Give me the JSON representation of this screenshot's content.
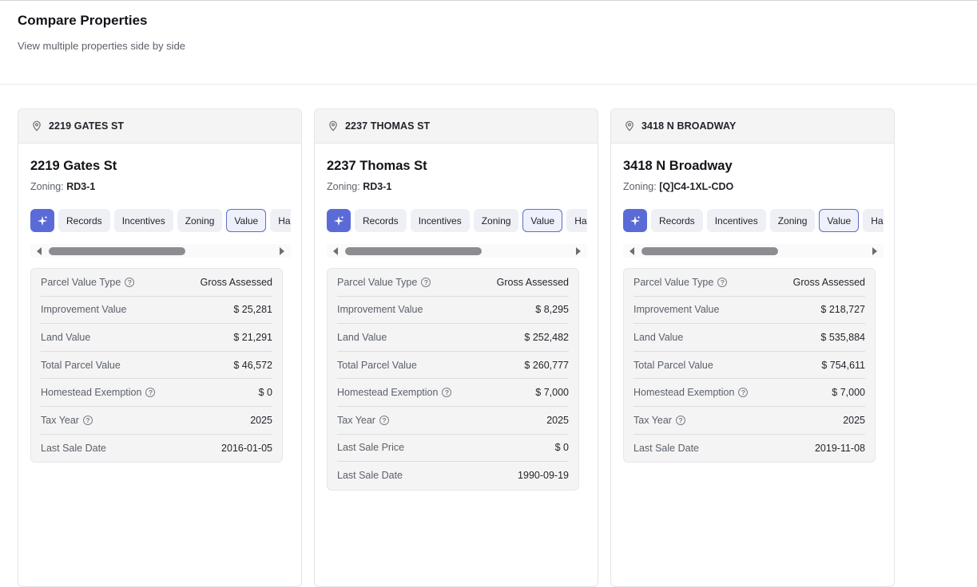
{
  "page": {
    "title": "Compare Properties",
    "subtitle": "View multiple properties side by side"
  },
  "colors": {
    "accent": "#5a6bd8",
    "active_tab_border": "#5b6dc7",
    "panel_bg": "#f4f4f5"
  },
  "tabs": [
    "Records",
    "Incentives",
    "Zoning",
    "Value",
    "Haza"
  ],
  "active_tab": "Value",
  "zoning_label": "Zoning:",
  "help_glyph": "?",
  "properties": [
    {
      "header": "2219 GATES ST",
      "name": "2219 Gates St",
      "zoning": "RD3-1",
      "tab_0": "Records",
      "tab_1": "Incentives",
      "tab_2": "Zoning",
      "tab_3": "Value",
      "tab_4": "Haza",
      "rows": [
        {
          "label": "Parcel Value Type",
          "value": "Gross Assessed",
          "help": true
        },
        {
          "label": "Improvement Value",
          "value": "$ 25,281",
          "help": false
        },
        {
          "label": "Land Value",
          "value": "$ 21,291",
          "help": false
        },
        {
          "label": "Total Parcel Value",
          "value": "$ 46,572",
          "help": false
        },
        {
          "label": "Homestead Exemption",
          "value": "$ 0",
          "help": true
        },
        {
          "label": "Tax Year",
          "value": "2025",
          "help": true
        },
        {
          "label": "Last Sale Date",
          "value": "2016-01-05",
          "help": false
        }
      ]
    },
    {
      "header": "2237 THOMAS ST",
      "name": "2237 Thomas St",
      "zoning": "RD3-1",
      "tab_0": "Records",
      "tab_1": "Incentives",
      "tab_2": "Zoning",
      "tab_3": "Value",
      "tab_4": "Haza",
      "rows": [
        {
          "label": "Parcel Value Type",
          "value": "Gross Assessed",
          "help": true
        },
        {
          "label": "Improvement Value",
          "value": "$ 8,295",
          "help": false
        },
        {
          "label": "Land Value",
          "value": "$ 252,482",
          "help": false
        },
        {
          "label": "Total Parcel Value",
          "value": "$ 260,777",
          "help": false
        },
        {
          "label": "Homestead Exemption",
          "value": "$ 7,000",
          "help": true
        },
        {
          "label": "Tax Year",
          "value": "2025",
          "help": true
        },
        {
          "label": "Last Sale Price",
          "value": "$ 0",
          "help": false
        },
        {
          "label": "Last Sale Date",
          "value": "1990-09-19",
          "help": false
        }
      ]
    },
    {
      "header": "3418 N BROADWAY",
      "name": "3418 N Broadway",
      "zoning": "[Q]C4-1XL-CDO",
      "tab_0": "Records",
      "tab_1": "Incentives",
      "tab_2": "Zoning",
      "tab_3": "Value",
      "tab_4": "Haza",
      "rows": [
        {
          "label": "Parcel Value Type",
          "value": "Gross Assessed",
          "help": true
        },
        {
          "label": "Improvement Value",
          "value": "$ 218,727",
          "help": false
        },
        {
          "label": "Land Value",
          "value": "$ 535,884",
          "help": false
        },
        {
          "label": "Total Parcel Value",
          "value": "$ 754,611",
          "help": false
        },
        {
          "label": "Homestead Exemption",
          "value": "$ 7,000",
          "help": true
        },
        {
          "label": "Tax Year",
          "value": "2025",
          "help": true
        },
        {
          "label": "Last Sale Date",
          "value": "2019-11-08",
          "help": false
        }
      ]
    }
  ]
}
